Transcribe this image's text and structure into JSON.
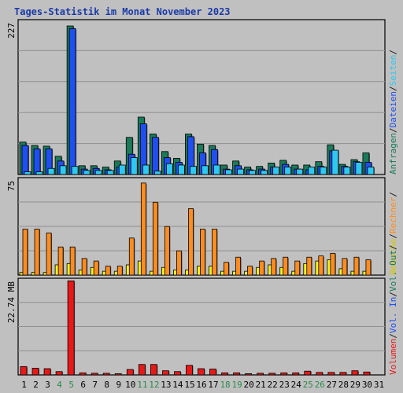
{
  "chart_data": {
    "type": "bar",
    "title": "Tages-Statistik im Monat November 2023",
    "days": [
      "1",
      "2",
      "3",
      "4",
      "5",
      "6",
      "7",
      "8",
      "9",
      "10",
      "11",
      "12",
      "13",
      "14",
      "15",
      "16",
      "17",
      "18",
      "19",
      "20",
      "21",
      "22",
      "23",
      "24",
      "25",
      "26",
      "27",
      "28",
      "29",
      "30",
      "31"
    ],
    "weekend_days": [
      "4",
      "5",
      "11",
      "12",
      "18",
      "19",
      "25",
      "26"
    ],
    "panels": [
      {
        "id": "requests",
        "max_label": "227",
        "ymax": 227,
        "series": [
          {
            "name": "Anfragen",
            "color": "#1a7a5a",
            "values": [
              48,
              43,
              42,
              27,
              220,
              13,
              13,
              11,
              20,
              55,
              85,
              60,
              34,
              24,
              60,
              45,
              43,
              14,
              20,
              11,
              12,
              17,
              21,
              14,
              14,
              19,
              44,
              15,
              22,
              32,
              0
            ]
          },
          {
            "name": "Seiten",
            "color": "#1f4ff0",
            "values": [
              43,
              38,
              38,
              20,
              216,
              8,
              9,
              7,
              11,
              30,
              75,
              55,
              25,
              18,
              56,
              32,
              37,
              8,
              13,
              7,
              8,
              11,
              15,
              8,
              7,
              12,
              35,
              12,
              19,
              18,
              0
            ]
          },
          {
            "name": "Dateien",
            "color": "#2ec8f0",
            "values": [
              4,
              4,
              9,
              13,
              12,
              6,
              6,
              6,
              14,
              25,
              14,
              5,
              16,
              14,
              12,
              13,
              14,
              7,
              8,
              6,
              6,
              11,
              11,
              8,
              11,
              11,
              36,
              11,
              18,
              11,
              0
            ]
          }
        ],
        "legend": [
          {
            "label": "Anfragen",
            "color": "#1a7a5a"
          },
          {
            "label": "/",
            "color": "#1a1a1a"
          },
          {
            "label": "Dateien",
            "color": "#1f4ff0"
          },
          {
            "label": "/",
            "color": "#1a1a1a"
          },
          {
            "label": "Seiten",
            "color": "#2ec8f0"
          },
          {
            "label": "/",
            "color": "#1a1a1a"
          }
        ]
      },
      {
        "id": "visits",
        "max_label": "75",
        "ymax": 75,
        "series": [
          {
            "name": "Besuche",
            "color": "#f0f020",
            "values": [
              2,
              2,
              2,
              8,
              9,
              4,
              6,
              3,
              3,
              8,
              11,
              3,
              6,
              4,
              4,
              7,
              7,
              3,
              3,
              3,
              6,
              8,
              6,
              3,
              9,
              11,
              12,
              5,
              3,
              3,
              0
            ]
          },
          {
            "name": "Rechner",
            "color": "#ff8c1e",
            "values": [
              36,
              36,
              33,
              22,
              22,
              13,
              11,
              7,
              7,
              29,
              72,
              57,
              38,
              19,
              52,
              36,
              36,
              10,
              14,
              7,
              11,
              13,
              14,
              11,
              14,
              15,
              17,
              13,
              14,
              12,
              0
            ]
          }
        ],
        "legend": [
          {
            "label": "Besuche",
            "color": "#d4c800"
          },
          {
            "label": "/",
            "color": "#1a1a1a"
          },
          {
            "label": "Rechner",
            "color": "#ff8c1e"
          },
          {
            "label": "/",
            "color": "#1a1a1a"
          }
        ]
      },
      {
        "id": "volume",
        "max_label": "22.74 MB",
        "ymax": 22.74,
        "series": [
          {
            "name": "Volumen",
            "color": "#e81818",
            "values": [
              2.0,
              1.6,
              1.5,
              0.8,
              22.5,
              0.5,
              0.4,
              0.4,
              0.3,
              1.3,
              2.5,
              2.5,
              1.0,
              0.8,
              2.3,
              1.5,
              1.4,
              0.5,
              0.5,
              0.3,
              0.4,
              0.4,
              0.5,
              0.5,
              0.9,
              0.6,
              0.6,
              0.6,
              1.0,
              0.7,
              0
            ]
          }
        ],
        "legend": [
          {
            "label": "Volumen",
            "color": "#e81818"
          },
          {
            "label": "/",
            "color": "#1a1a1a"
          },
          {
            "label": "Vol. In",
            "color": "#1f4ff0"
          },
          {
            "label": "/",
            "color": "#1a1a1a"
          },
          {
            "label": "Vol. Out",
            "color": "#1a7a5a"
          },
          {
            "label": "/",
            "color": "#1a1a1a"
          }
        ]
      }
    ]
  },
  "colors": {
    "background": "#c0c0c0",
    "title": "#1a3aa8",
    "weekday": "#000000",
    "weekend": "#2a8a4a",
    "grid": "#909090"
  }
}
